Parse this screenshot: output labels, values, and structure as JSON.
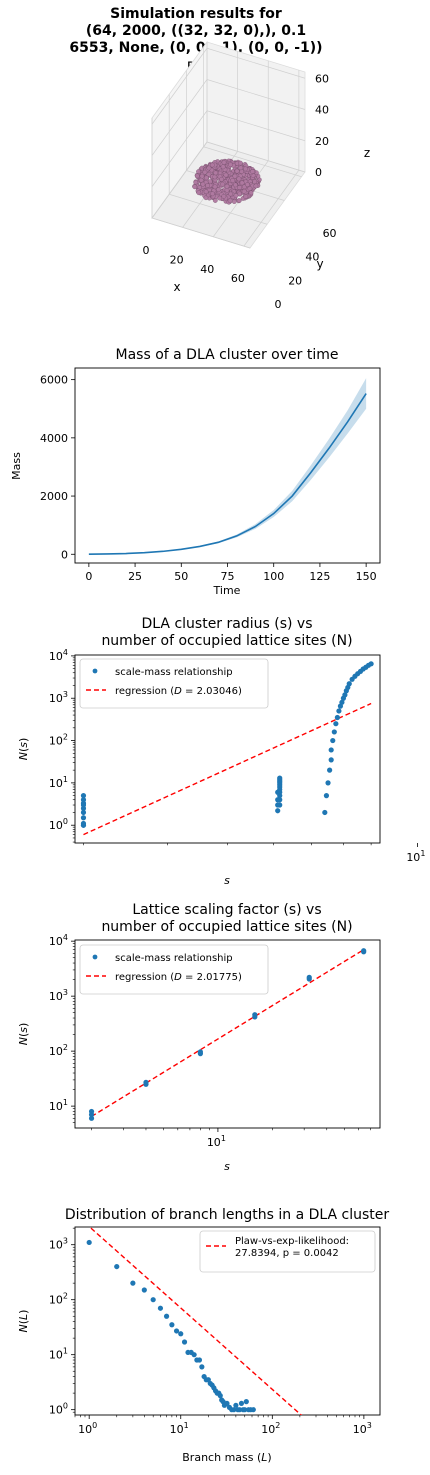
{
  "suptitle": [
    "Simulation results for",
    "(64, 2000, ((32, 32, 0),), 0.1",
    "6553, None, (0, 0, -1), (0, 0, -1))"
  ],
  "chart_data": [
    {
      "type": "scatter3d",
      "title": "DLA cluster",
      "xlabel": "x",
      "ylabel": "y",
      "zlabel": "z",
      "x_ticks": [
        "0",
        "20",
        "40",
        "60"
      ],
      "y_ticks": [
        "0",
        "20",
        "40",
        "60"
      ],
      "z_ticks": [
        "0",
        "20",
        "40",
        "60"
      ],
      "color": "#b07aa1"
    },
    {
      "type": "line",
      "title": "Mass of a DLA cluster over time",
      "xlabel": "Time",
      "ylabel": "Mass",
      "xlim": [
        -7.5,
        157.5
      ],
      "ylim": [
        -300,
        6400
      ],
      "x_ticks": [
        0,
        25,
        50,
        75,
        100,
        125,
        150
      ],
      "y_ticks": [
        0,
        2000,
        4000,
        6000
      ],
      "x": [
        0,
        10,
        20,
        30,
        40,
        50,
        60,
        70,
        80,
        90,
        100,
        110,
        120,
        130,
        140,
        150
      ],
      "values": [
        2,
        10,
        25,
        55,
        100,
        170,
        270,
        410,
        630,
        950,
        1400,
        2000,
        2800,
        3650,
        4550,
        5520
      ],
      "band_low": [
        2,
        10,
        24,
        52,
        95,
        160,
        250,
        380,
        580,
        870,
        1280,
        1820,
        2550,
        3330,
        4150,
        5000
      ],
      "band_high": [
        2,
        10,
        26,
        58,
        105,
        180,
        290,
        440,
        680,
        1030,
        1520,
        2180,
        3050,
        3970,
        4950,
        6050
      ],
      "color": "#1f77b4"
    },
    {
      "type": "scatter",
      "title": [
        "DLA cluster radius (s) vs",
        "number of occupied lattice sites (N)"
      ],
      "xlabel": "s",
      "ylabel": "N(s)",
      "xscale": "log",
      "yscale": "log",
      "xlim": [
        1.92,
        8.35
      ],
      "ylim": [
        0.38,
        10500
      ],
      "x_ticks": [
        10
      ],
      "y_ticks": [
        1,
        10,
        100,
        1000,
        10000
      ],
      "series": [
        {
          "name": "scale-mass relationship",
          "x": [
            2,
            2,
            2,
            2,
            2,
            2,
            2,
            2,
            2,
            2,
            5.1,
            5.1,
            5.1,
            5.1,
            5.15,
            5.15,
            5.15,
            5.15,
            5.15,
            5.15,
            5.15,
            5.15,
            5.15,
            5.15,
            5.15,
            6.4,
            6.45,
            6.5,
            6.55,
            6.6,
            6.6,
            6.65,
            6.7,
            6.75,
            6.8,
            6.85,
            6.9,
            6.95,
            7.0,
            7.05,
            7.1,
            7.15,
            7.2,
            7.3,
            7.4,
            7.5,
            7.6,
            7.7,
            7.8,
            7.9,
            8.0
          ],
          "values": [
            1,
            1,
            1.1,
            1.5,
            2,
            2.5,
            3,
            3.3,
            4,
            5,
            2.2,
            3,
            4,
            6,
            3,
            4,
            5,
            6,
            7,
            8,
            9,
            10,
            11,
            12,
            13,
            2,
            5,
            10,
            20,
            35,
            60,
            100,
            160,
            250,
            350,
            500,
            650,
            800,
            1000,
            1200,
            1500,
            1800,
            2200,
            2800,
            3300,
            3800,
            4300,
            4900,
            5400,
            6000,
            6500
          ]
        },
        {
          "name": "regression (D = 2.03046)",
          "x": [
            2,
            8
          ],
          "values": [
            0.6,
            750
          ]
        }
      ],
      "legend": "top-left",
      "color": "#1f77b4",
      "fit_color": "#ff0000"
    },
    {
      "type": "scatter",
      "title": [
        "Lattice scaling factor (s) vs",
        "number of occupied lattice sites (N)"
      ],
      "xlabel": "s",
      "ylabel": "N(s)",
      "xscale": "log",
      "yscale": "log",
      "xlim": [
        1.62,
        78.8
      ],
      "ylim": [
        4.0,
        10500
      ],
      "x_ticks": [
        10
      ],
      "y_ticks": [
        10,
        100,
        1000,
        10000
      ],
      "series": [
        {
          "name": "scale-mass relationship",
          "x": [
            2,
            2,
            2,
            4,
            4,
            8,
            8,
            16,
            16,
            32,
            32,
            64,
            64
          ],
          "values": [
            6,
            7,
            8,
            25,
            27,
            90,
            97,
            420,
            460,
            2050,
            2200,
            6400,
            6700
          ]
        },
        {
          "name": "regression (D = 2.01775)",
          "x": [
            2,
            64
          ],
          "values": [
            6.5,
            7000
          ]
        }
      ],
      "legend": "top-left",
      "color": "#1f77b4",
      "fit_color": "#ff0000"
    },
    {
      "type": "scatter",
      "title": "Distribution of branch lengths in a DLA cluster",
      "xlabel": "Branch mass (L)",
      "ylabel": "N(L)",
      "xscale": "log",
      "yscale": "log",
      "xlim": [
        0.7,
        1500
      ],
      "ylim": [
        0.8,
        2100
      ],
      "x_ticks": [
        1,
        10,
        100,
        1000
      ],
      "y_ticks": [
        1,
        10,
        100,
        1000
      ],
      "series": [
        {
          "name": "",
          "x": [
            1,
            2,
            3,
            4,
            5,
            6,
            7,
            8,
            9,
            10,
            11,
            12,
            13,
            14,
            15,
            16,
            17,
            18,
            19,
            20,
            21,
            22,
            23,
            24,
            25,
            26,
            27,
            28,
            29,
            30,
            32,
            34,
            36,
            38,
            40,
            42,
            44,
            46,
            48,
            50,
            52,
            55,
            58,
            62
          ],
          "values": [
            1100,
            400,
            200,
            150,
            100,
            70,
            50,
            35,
            27,
            24,
            17,
            11,
            11,
            10,
            8,
            8,
            6,
            4,
            3.5,
            3.5,
            3,
            2.8,
            2.5,
            2.2,
            2,
            2,
            1.8,
            1.5,
            1.4,
            1.2,
            1.3,
            1.1,
            1,
            1,
            1.2,
            1,
            1,
            1.3,
            1,
            1,
            1.4,
            1,
            1,
            1
          ]
        },
        {
          "name": "Plaw-vs-exp-likelihood:\n27.8394, p = 0.0042",
          "x": [
            0.9,
            210
          ],
          "values": [
            2500,
            0.78
          ]
        }
      ],
      "legend": "top-right",
      "color": "#1f77b4",
      "fit_color": "#ff0000"
    }
  ]
}
